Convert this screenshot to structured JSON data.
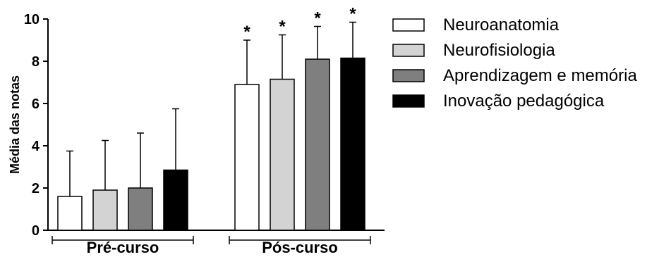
{
  "chart_data": {
    "type": "bar",
    "title": "",
    "xlabel": "",
    "ylabel": "Média das notas",
    "ylim": [
      0,
      10
    ],
    "yticks": [
      "0",
      "2",
      "4",
      "6",
      "8",
      "10"
    ],
    "groups": [
      "Pré-curso",
      "Pós-curso"
    ],
    "series": [
      {
        "name": "Neuroanatomia",
        "color": "#ffffff",
        "values": [
          1.6,
          6.9
        ],
        "errors": [
          2.15,
          2.1
        ],
        "significance": [
          "",
          "*"
        ]
      },
      {
        "name": "Neurofisiologia",
        "color": "#d3d3d3",
        "values": [
          1.9,
          7.15
        ],
        "errors": [
          2.35,
          2.1
        ],
        "significance": [
          "",
          "*"
        ]
      },
      {
        "name": "Aprendizagem e memória",
        "color": "#7f7f7f",
        "values": [
          2.0,
          8.1
        ],
        "errors": [
          2.6,
          1.55
        ],
        "significance": [
          "",
          "*"
        ]
      },
      {
        "name": "Inovação pedagógica",
        "color": "#000000",
        "values": [
          2.85,
          8.15
        ],
        "errors": [
          2.9,
          1.7
        ],
        "significance": [
          "",
          "*"
        ]
      }
    ],
    "legend_position": "right",
    "grid": false
  }
}
